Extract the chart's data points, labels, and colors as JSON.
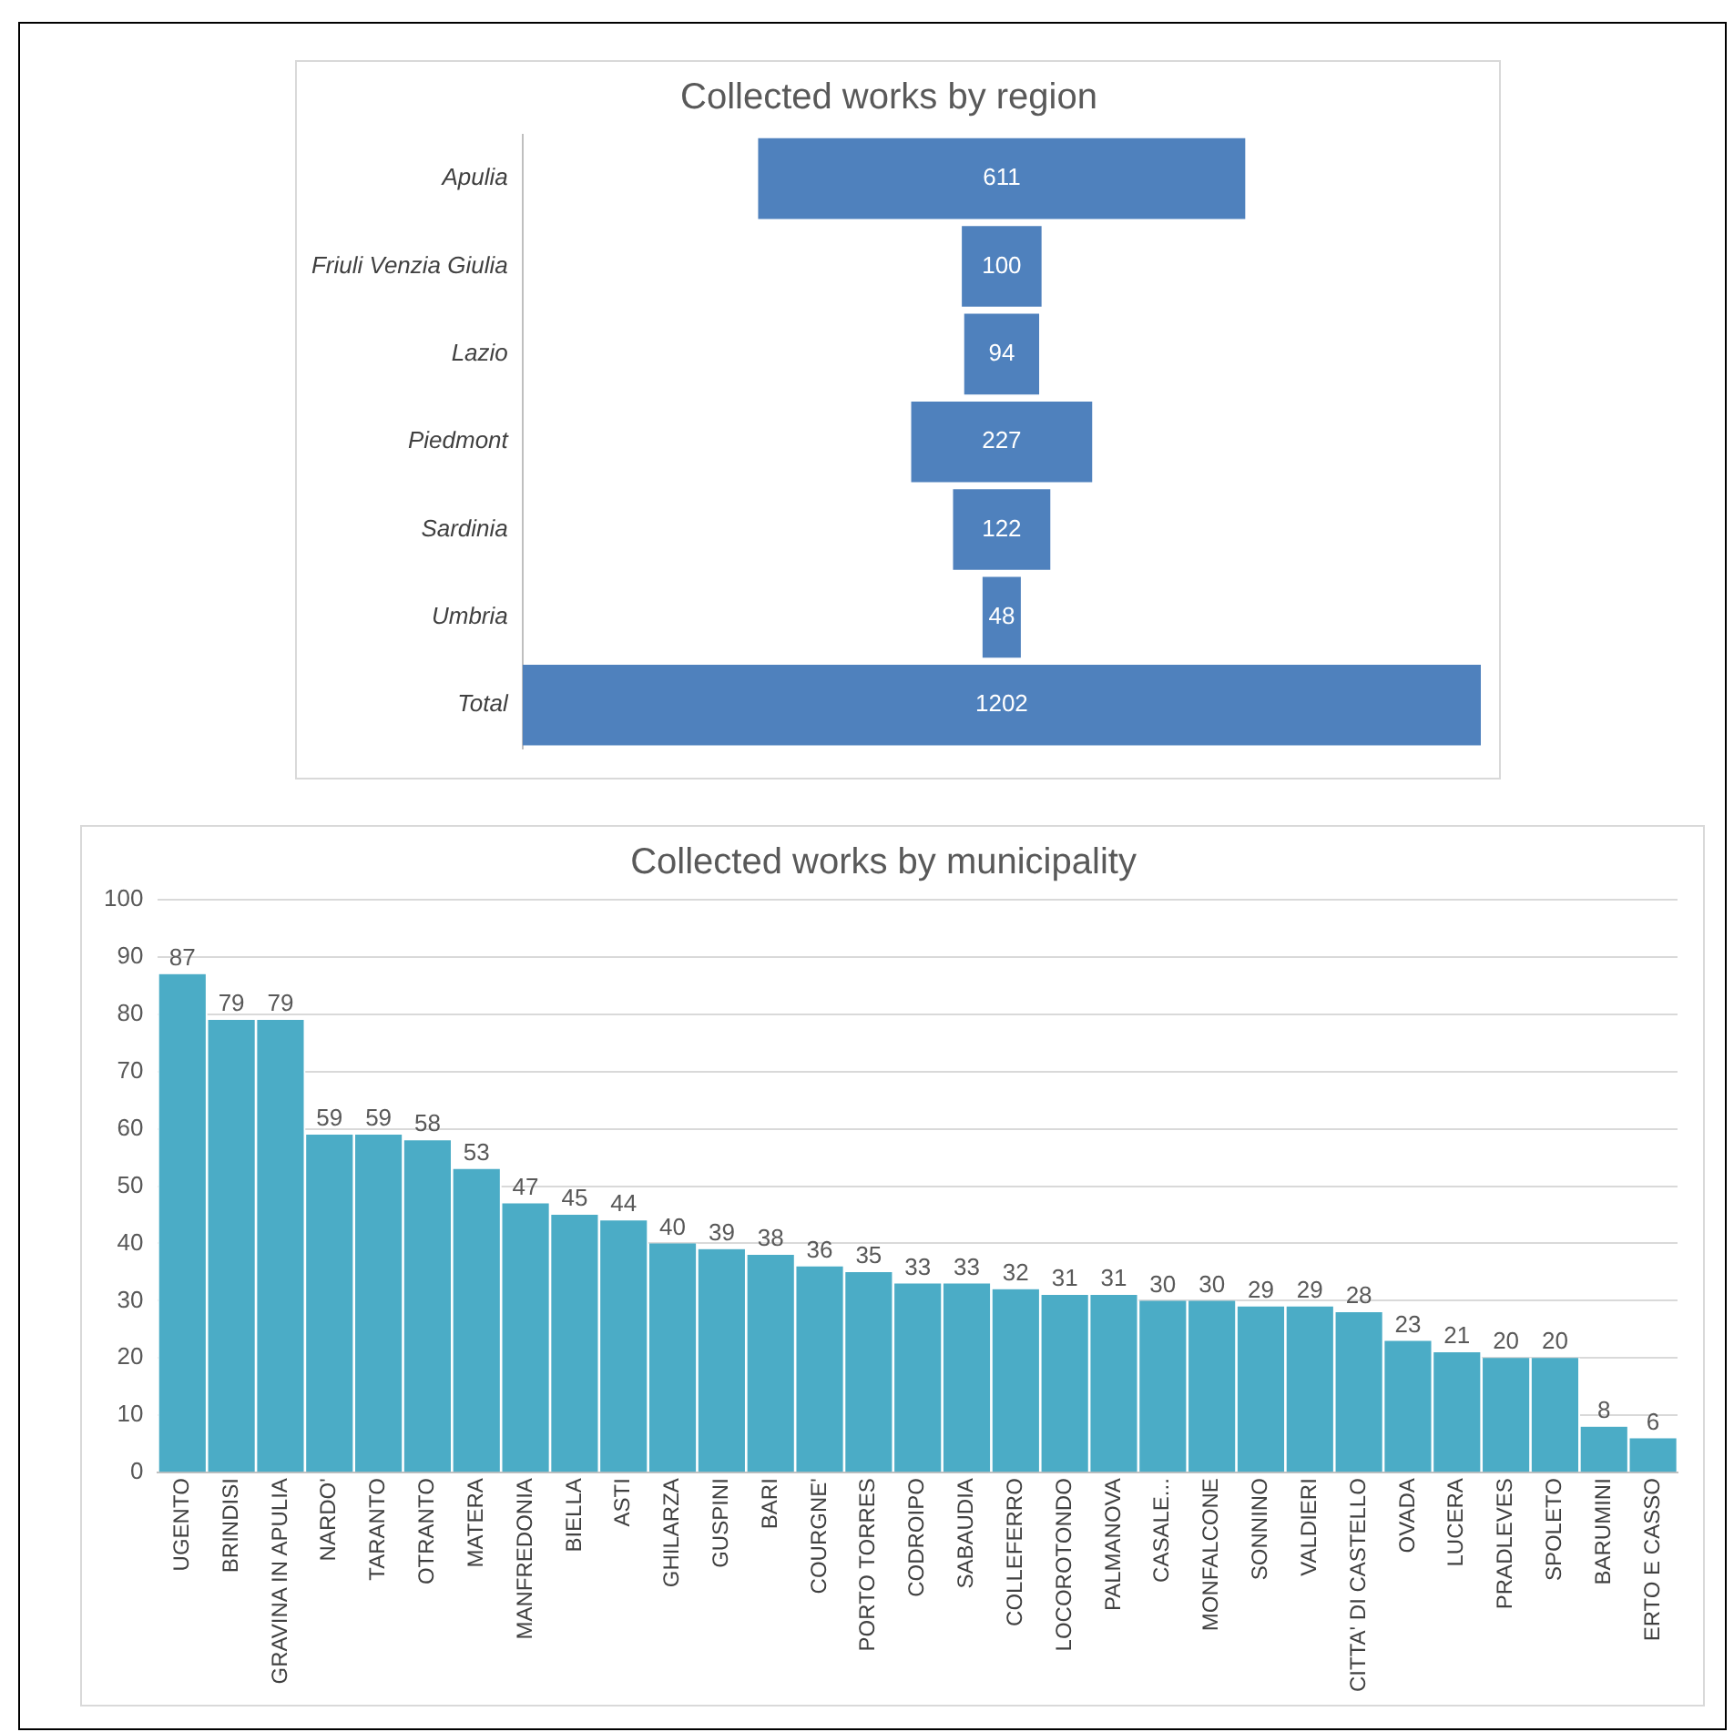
{
  "chart_data": [
    {
      "type": "other",
      "title": "Collected works by region",
      "categories": [
        "Apulia",
        "Friuli Venzia Giulia",
        "Lazio",
        "Piedmont",
        "Sardinia",
        "Umbria",
        "Total"
      ],
      "values": [
        611,
        100,
        94,
        227,
        122,
        48,
        1202
      ],
      "color": "#4f81bd",
      "data_labels": true
    },
    {
      "type": "bar",
      "title": "Collected works by municipality",
      "categories": [
        "UGENTO",
        "BRINDISI",
        "GRAVINA IN APULIA",
        "NARDO'",
        "TARANTO",
        "OTRANTO",
        "MATERA",
        "MANFREDONIA",
        "BIELLA",
        "ASTI",
        "GHILARZA",
        "GUSPINI",
        "BARI",
        "COURGNE'",
        "PORTO TORRES",
        "CODROIPO",
        "SABAUDIA",
        "COLLEFERRO",
        "LOCOROTONDO",
        "PALMANOVA",
        "CASALE...",
        "MONFALCONE",
        "SONNINO",
        "VALDIERI",
        "CITTA' DI CASTELLO",
        "OVADA",
        "LUCERA",
        "PRADLEVES",
        "SPOLETO",
        "BARUMINI",
        "ERTO E CASSO"
      ],
      "values": [
        87,
        79,
        79,
        59,
        59,
        58,
        53,
        47,
        45,
        44,
        40,
        39,
        38,
        36,
        35,
        33,
        33,
        32,
        31,
        31,
        30,
        30,
        29,
        29,
        28,
        23,
        21,
        20,
        20,
        8,
        6
      ],
      "color": "#4bacc6",
      "ylim": [
        0,
        100
      ],
      "yticks": [
        0,
        10,
        20,
        30,
        40,
        50,
        60,
        70,
        80,
        90,
        100
      ],
      "grid": "y",
      "data_labels": true
    }
  ]
}
